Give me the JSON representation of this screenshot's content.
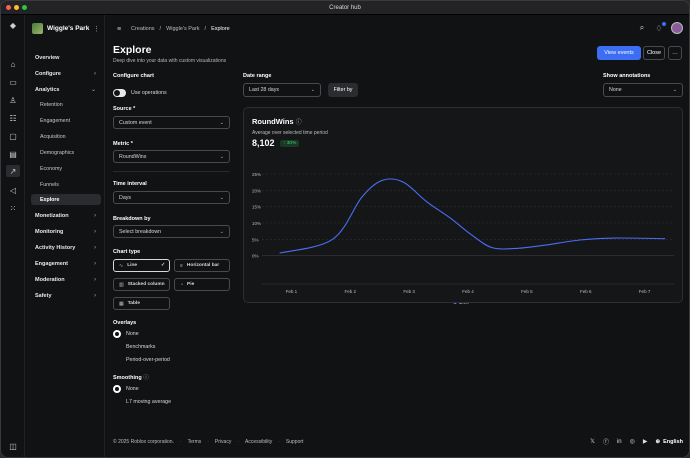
{
  "window": {
    "title": "Creator hub"
  },
  "experience": {
    "name": "Wiggle's Park"
  },
  "sidebar": {
    "items": [
      {
        "label": "Overview"
      },
      {
        "label": "Configure"
      },
      {
        "label": "Analytics"
      }
    ],
    "analytics_sub": [
      {
        "label": "Retention"
      },
      {
        "label": "Engagement"
      },
      {
        "label": "Acquisition"
      },
      {
        "label": "Demographics"
      },
      {
        "label": "Economy"
      },
      {
        "label": "Funnels"
      },
      {
        "label": "Explore"
      }
    ],
    "groups": [
      {
        "label": "Monetization"
      },
      {
        "label": "Monitoring"
      },
      {
        "label": "Activity History"
      },
      {
        "label": "Engagement"
      },
      {
        "label": "Moderation"
      },
      {
        "label": "Safety"
      }
    ]
  },
  "breadcrumb": {
    "items": [
      "Creations",
      "/",
      "Wiggle's Park",
      "/",
      "Explore"
    ]
  },
  "page": {
    "title": "Explore",
    "subtitle": "Deep dive into your data with custom visualizations",
    "view_events": "View events",
    "close": "Close",
    "more": "…"
  },
  "config": {
    "heading": "Configure chart",
    "use_operations": "Use operations",
    "source_label": "Source *",
    "source_value": "Custom event",
    "metric_label": "Metric *",
    "metric_value": "RoundWins",
    "interval_label": "Time interval",
    "interval_value": "Days",
    "breakdown_label": "Breakdown by",
    "breakdown_value": "Select breakdown",
    "chart_type_label": "Chart type",
    "chart_types": [
      "Line",
      "Horizontal bar",
      "Stacked column",
      "Pie",
      "Table"
    ],
    "overlays_label": "Overlays",
    "overlays": [
      "None",
      "Benchmarks",
      "Period-over-period"
    ],
    "smoothing_label": "Smoothing",
    "smoothing": [
      "None",
      "L7 moving average"
    ]
  },
  "filters": {
    "date_range_label": "Date range",
    "date_range_value": "Last 28 days",
    "filter_by": "Filter by",
    "annotations_label": "Show annotations",
    "annotations_value": "None"
  },
  "chart_card": {
    "title": "RoundWins",
    "info": "ⓘ",
    "subtitle": "Average over selected time period",
    "value": "8,102",
    "change": "↑ 30%"
  },
  "chart_data": {
    "type": "line",
    "x": [
      "Feb 1",
      "Feb 2",
      "Feb 3",
      "Feb 4",
      "Feb 5",
      "Feb 6",
      "Feb 7"
    ],
    "y_ticks": [
      "25%",
      "20%",
      "15%",
      "10%",
      "5%",
      "0%"
    ],
    "ylim": [
      -5,
      25
    ],
    "series": [
      {
        "name": "Total",
        "color": "#4a6df5",
        "points": [
          [
            0.8,
            0.8
          ],
          [
            1.7,
            5.0
          ],
          [
            2.2,
            18
          ],
          [
            2.55,
            23.1
          ],
          [
            2.9,
            22.5
          ],
          [
            3.3,
            16.5
          ],
          [
            3.7,
            11.5
          ],
          [
            4.05,
            6.5
          ],
          [
            4.4,
            2.5
          ],
          [
            4.8,
            2.2
          ],
          [
            5.3,
            3.2
          ],
          [
            5.9,
            4.8
          ],
          [
            6.5,
            5.4
          ],
          [
            7.35,
            5.2
          ]
        ]
      }
    ],
    "legend": [
      "Total"
    ],
    "legend_position": "bottom"
  },
  "footer": {
    "copyright": "© 2025 Roblox corporation.",
    "links": [
      "Terms",
      "Privacy",
      "Accessibility",
      "Support"
    ],
    "language": "English"
  },
  "colors": {
    "accent": "#3b6df5",
    "line": "#4a6df5",
    "positive": "#3fcf6c"
  }
}
